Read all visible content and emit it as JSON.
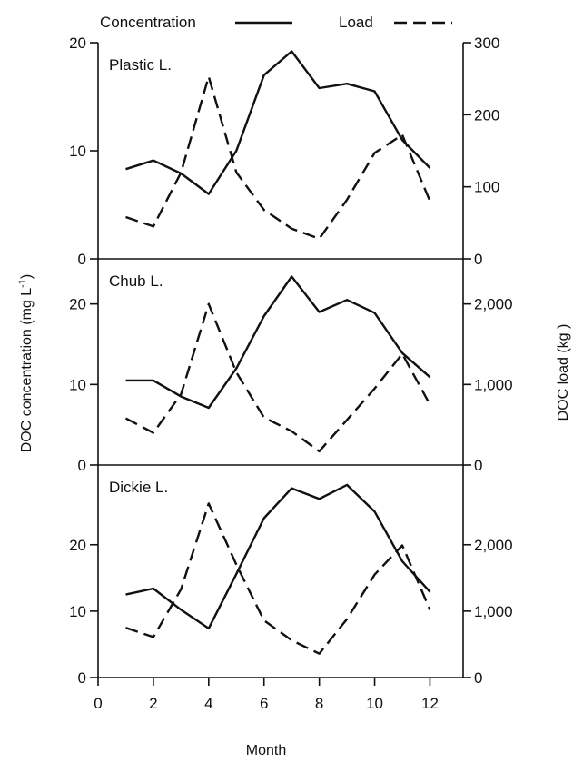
{
  "chart_data": {
    "type": "line",
    "xlabel": "Month",
    "ylabel_left": "DOC concentration (mg L",
    "ylabel_left_sup": "-1",
    "ylabel_left_end": ")",
    "ylabel_right": "DOC load  (kg )",
    "x_ticks": [
      "0",
      "2",
      "4",
      "6",
      "8",
      "10",
      "12"
    ],
    "xlim": [
      0,
      13.2
    ],
    "legend": {
      "concentration": "Concentration",
      "load": "Load",
      "placement": "top"
    },
    "panels": [
      {
        "name": "Plastic L.",
        "ylim_left": [
          0,
          20
        ],
        "ylim_right": [
          0,
          300
        ],
        "left_ticks": [
          "0",
          "10",
          "20"
        ],
        "left_tick_values": [
          0,
          10,
          20
        ],
        "right_ticks": [
          "0",
          "100",
          "200",
          "300"
        ],
        "right_tick_values": [
          0,
          100,
          200,
          300
        ],
        "series": [
          {
            "name": "Concentration",
            "axis": "left",
            "x": [
              1,
              2,
              3,
              4,
              5,
              6,
              7,
              8,
              9,
              10,
              11,
              12
            ],
            "values": [
              8.3,
              9.1,
              7.9,
              6.0,
              10.0,
              17.0,
              19.2,
              15.8,
              16.2,
              15.5,
              11.0,
              8.4
            ]
          },
          {
            "name": "Load",
            "axis": "right",
            "x": [
              1,
              2,
              3,
              4,
              5,
              6,
              7,
              8,
              9,
              10,
              11,
              12
            ],
            "values": [
              58,
              45,
              120,
              253,
              120,
              68,
              42,
              28,
              82,
              147,
              172,
              80
            ]
          }
        ]
      },
      {
        "name": "Chub L.",
        "ylim_left": [
          0,
          25.6
        ],
        "ylim_right": [
          0,
          2560
        ],
        "left_ticks": [
          "0",
          "10",
          "20"
        ],
        "left_tick_values": [
          0,
          10,
          20
        ],
        "right_ticks": [
          "0",
          "1,000",
          "2,000"
        ],
        "right_tick_values": [
          0,
          1000,
          2000
        ],
        "series": [
          {
            "name": "Concentration",
            "axis": "left",
            "x": [
              1,
              2,
              3,
              4,
              5,
              6,
              7,
              8,
              9,
              10,
              11,
              12
            ],
            "values": [
              10.5,
              10.5,
              8.5,
              7.1,
              12.0,
              18.5,
              23.4,
              19.0,
              20.5,
              18.9,
              13.9,
              10.9
            ]
          },
          {
            "name": "Load",
            "axis": "right",
            "x": [
              1,
              2,
              3,
              4,
              5,
              6,
              7,
              8,
              9,
              10,
              11,
              12
            ],
            "values": [
              580,
              400,
              880,
              2000,
              1150,
              590,
              420,
              170,
              560,
              950,
              1380,
              750
            ]
          }
        ]
      },
      {
        "name": "Dickie L.",
        "ylim_left": [
          0,
          32
        ],
        "ylim_right": [
          0,
          3200
        ],
        "left_ticks": [
          "0",
          "10",
          "20"
        ],
        "left_tick_values": [
          0,
          10,
          20
        ],
        "right_ticks": [
          "0",
          "1,000",
          "2,000"
        ],
        "right_tick_values": [
          0,
          1000,
          2000
        ],
        "series": [
          {
            "name": "Concentration",
            "axis": "left",
            "x": [
              1,
              2,
              3,
              4,
              5,
              6,
              7,
              8,
              9,
              10,
              11,
              12
            ],
            "values": [
              12.5,
              13.4,
              10.2,
              7.4,
              15.6,
              24.0,
              28.5,
              26.9,
              29.0,
              25.0,
              17.5,
              12.9
            ]
          },
          {
            "name": "Load",
            "axis": "right",
            "x": [
              1,
              2,
              3,
              4,
              5,
              6,
              7,
              8,
              9,
              10,
              11,
              12
            ],
            "values": [
              750,
              610,
              1330,
              2620,
              1700,
              860,
              560,
              360,
              880,
              1550,
              1990,
              1020
            ]
          }
        ]
      }
    ]
  }
}
